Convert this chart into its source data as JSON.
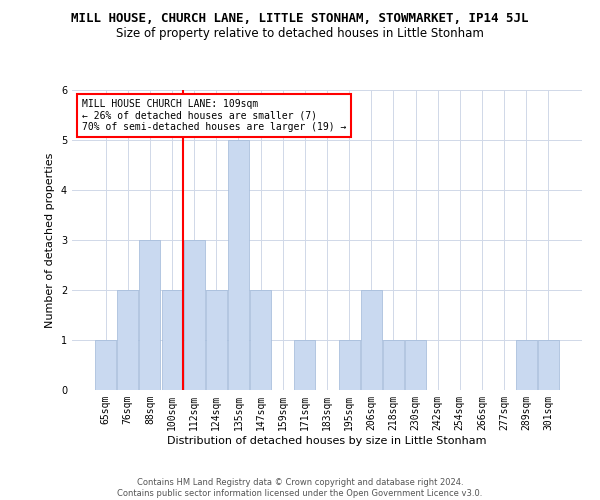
{
  "title": "MILL HOUSE, CHURCH LANE, LITTLE STONHAM, STOWMARKET, IP14 5JL",
  "subtitle": "Size of property relative to detached houses in Little Stonham",
  "xlabel": "Distribution of detached houses by size in Little Stonham",
  "ylabel": "Number of detached properties",
  "footer_line1": "Contains HM Land Registry data © Crown copyright and database right 2024.",
  "footer_line2": "Contains public sector information licensed under the Open Government Licence v3.0.",
  "categories": [
    "65sqm",
    "76sqm",
    "88sqm",
    "100sqm",
    "112sqm",
    "124sqm",
    "135sqm",
    "147sqm",
    "159sqm",
    "171sqm",
    "183sqm",
    "195sqm",
    "206sqm",
    "218sqm",
    "230sqm",
    "242sqm",
    "254sqm",
    "266sqm",
    "277sqm",
    "289sqm",
    "301sqm"
  ],
  "values": [
    1,
    2,
    3,
    2,
    3,
    2,
    5,
    2,
    0,
    1,
    0,
    1,
    2,
    1,
    1,
    0,
    0,
    0,
    0,
    1,
    1
  ],
  "bar_color": "#c9d9f0",
  "bar_edge_color": "#a0b8d8",
  "red_line_index": 4,
  "annotation_line1": "MILL HOUSE CHURCH LANE: 109sqm",
  "annotation_line2": "← 26% of detached houses are smaller (7)",
  "annotation_line3": "70% of semi-detached houses are larger (19) →",
  "annotation_box_color": "white",
  "annotation_box_edge_color": "red",
  "ylim": [
    0,
    6
  ],
  "yticks": [
    0,
    1,
    2,
    3,
    4,
    5,
    6
  ],
  "grid_color": "#d0d8e8",
  "title_fontsize": 9,
  "subtitle_fontsize": 8.5,
  "label_fontsize": 8,
  "tick_fontsize": 7,
  "annotation_fontsize": 7,
  "footer_fontsize": 6
}
